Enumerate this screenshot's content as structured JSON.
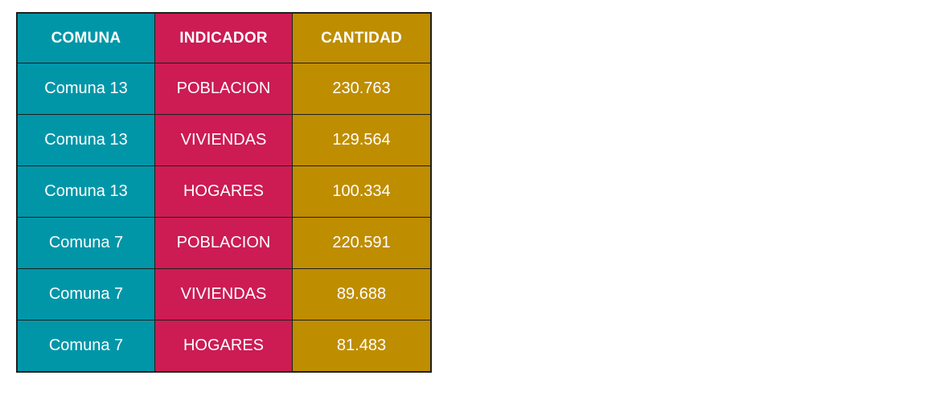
{
  "table": {
    "headers": [
      "COMUNA",
      "INDICADOR",
      "CANTIDAD"
    ],
    "rows": [
      [
        "Comuna 13",
        "POBLACION",
        "230.763"
      ],
      [
        "Comuna 13",
        "VIVIENDAS",
        "129.564"
      ],
      [
        "Comuna 13",
        "HOGARES",
        "100.334"
      ],
      [
        "Comuna 7",
        "POBLACION",
        "220.591"
      ],
      [
        "Comuna 7",
        "VIVIENDAS",
        "89.688"
      ],
      [
        "Comuna 7",
        "HOGARES",
        "81.483"
      ]
    ]
  },
  "colors": {
    "comuna": "#0096a8",
    "indicador": "#cc1c53",
    "cantidad": "#bf8d00",
    "border": "#1f1f1f",
    "text": "#ffffff"
  }
}
